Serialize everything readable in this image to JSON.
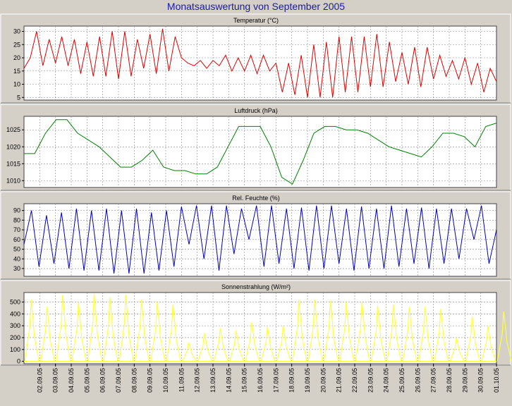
{
  "title": "Monatsauswertung von September 2005",
  "colors": {
    "background": "#d4d0c8",
    "plot": "#ffffff",
    "grid": "#888888",
    "title": "#1a1aa8"
  },
  "chart_data": [
    {
      "type": "line",
      "title": "Temperatur (°C)",
      "color": "#e00000",
      "ylim": [
        4,
        32
      ],
      "yticks": [
        5,
        10,
        15,
        20,
        25,
        30
      ],
      "grid": true,
      "day_start": 1,
      "day_end": 31,
      "series": [
        {
          "values": [
            16,
            20,
            30,
            17,
            27,
            18,
            28,
            17,
            27,
            14,
            26,
            13,
            28,
            13,
            30,
            12,
            30,
            13,
            27,
            16,
            29,
            14,
            31,
            15,
            28,
            20,
            18,
            17,
            19,
            16,
            19,
            17,
            21,
            15,
            20,
            15,
            21,
            14,
            21,
            15,
            18,
            7,
            18,
            6,
            21,
            5,
            25,
            5,
            26,
            5,
            28,
            7,
            28,
            7,
            28,
            9,
            29,
            9,
            26,
            11,
            22,
            10,
            24,
            9,
            24,
            12,
            21,
            13,
            19,
            12,
            20,
            10,
            18,
            7,
            16,
            11
          ]
        }
      ]
    },
    {
      "type": "line",
      "title": "Luftdruck (hPa)",
      "color": "#008000",
      "ylim": [
        1008,
        1029
      ],
      "yticks": [
        1010,
        1015,
        1020,
        1025
      ],
      "grid": true,
      "day_start": 1,
      "day_end": 31,
      "series": [
        {
          "values": [
            1018,
            1018,
            1024,
            1028,
            1028,
            1024,
            1022,
            1020,
            1017,
            1014,
            1014,
            1016,
            1019,
            1014,
            1013,
            1013,
            1012,
            1012,
            1014,
            1020,
            1026,
            1026,
            1026,
            1020,
            1011,
            1009,
            1016,
            1024,
            1026,
            1026,
            1025,
            1025,
            1024,
            1022,
            1020,
            1019,
            1018,
            1017,
            1020,
            1024,
            1024,
            1023,
            1020,
            1026,
            1027
          ]
        }
      ]
    },
    {
      "type": "line",
      "title": "Rel. Feuchte (%)",
      "color": "#0000c0",
      "ylim": [
        22,
        97
      ],
      "yticks": [
        30,
        40,
        50,
        60,
        70,
        80,
        90
      ],
      "grid": true,
      "day_start": 1,
      "day_end": 31,
      "series": [
        {
          "values": [
            55,
            90,
            32,
            85,
            35,
            88,
            30,
            92,
            28,
            90,
            28,
            92,
            25,
            90,
            25,
            92,
            25,
            88,
            28,
            90,
            32,
            94,
            55,
            95,
            40,
            95,
            28,
            95,
            45,
            92,
            60,
            95,
            32,
            95,
            35,
            92,
            30,
            93,
            28,
            95,
            30,
            95,
            35,
            92,
            28,
            94,
            30,
            92,
            30,
            95,
            32,
            92,
            35,
            93,
            30,
            92,
            35,
            92,
            40,
            92,
            60,
            95,
            35,
            70
          ]
        }
      ]
    },
    {
      "type": "bar",
      "title": "Sonnenstrahlung (W/m²)",
      "color": "#ffff40",
      "ylim": [
        -20,
        580
      ],
      "yticks": [
        0,
        100,
        200,
        300,
        400,
        500
      ],
      "grid": true,
      "day_start": 1,
      "day_end": 31,
      "series": [
        {
          "values": [
            520,
            460,
            560,
            500,
            570,
            540,
            560,
            520,
            500,
            480,
            160,
            240,
            280,
            260,
            330,
            290,
            300,
            520,
            520,
            510,
            500,
            500,
            470,
            480,
            460,
            460,
            440,
            200,
            380,
            300,
            420
          ]
        }
      ],
      "x_tick_labels": [
        "02.09.05",
        "03.09.05",
        "04.09.05",
        "05.09.05",
        "06.09.05",
        "07.09.05",
        "08.09.05",
        "09.09.05",
        "10.09.05",
        "11.09.05",
        "12.09.05",
        "13.09.05",
        "14.09.05",
        "15.09.05",
        "16.09.05",
        "17.09.05",
        "18.09.05",
        "19.09.05",
        "20.09.05",
        "21.09.05",
        "22.09.05",
        "23.09.05",
        "24.09.05",
        "25.09.05",
        "26.09.05",
        "27.09.05",
        "28.09.05",
        "29.09.05",
        "30.09.05",
        "01.10.05"
      ]
    }
  ]
}
